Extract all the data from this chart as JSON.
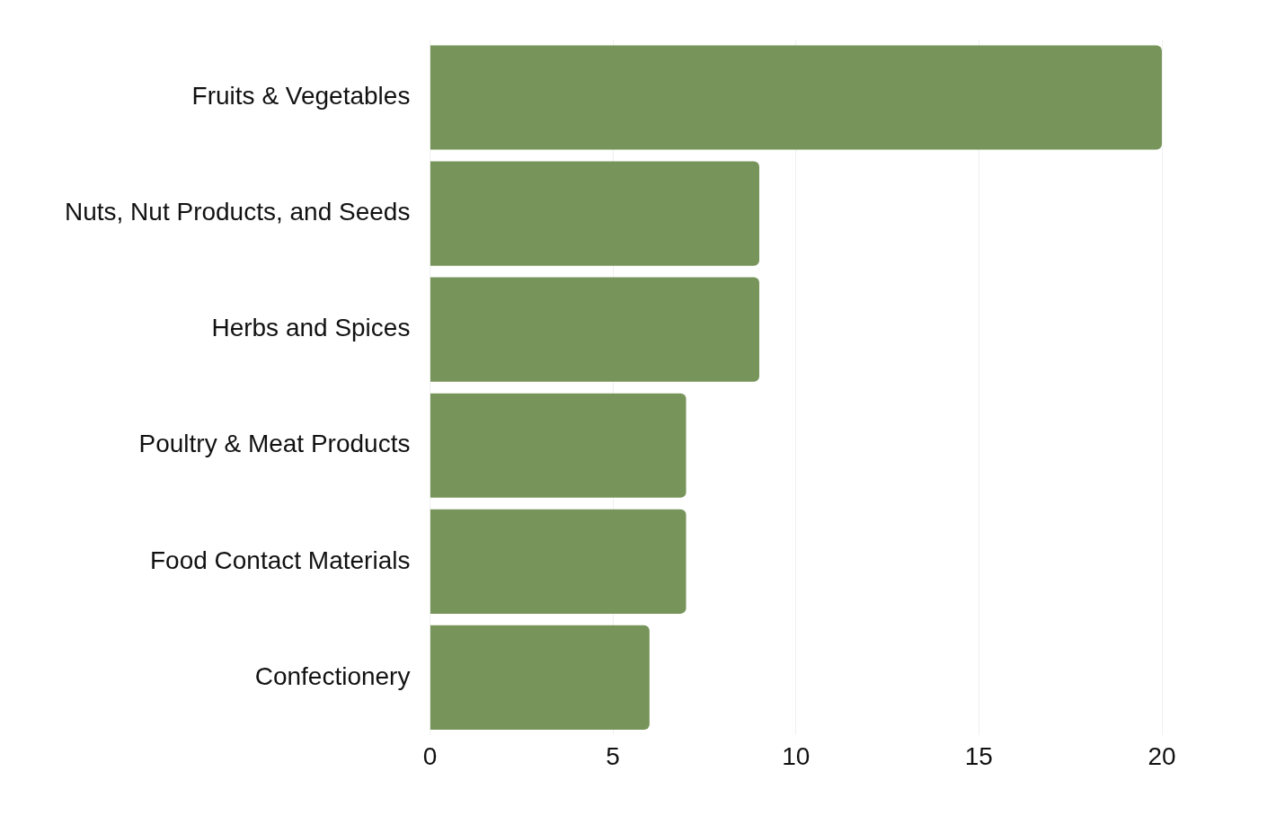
{
  "chart_data": {
    "type": "bar",
    "orientation": "horizontal",
    "categories": [
      "Fruits & Vegetables",
      "Nuts, Nut Products, and Seeds",
      "Herbs and Spices",
      "Poultry & Meat Products",
      "Food Contact Materials",
      "Confectionery"
    ],
    "values": [
      20,
      9,
      9,
      7,
      7,
      6
    ],
    "color": "#77955a",
    "xlim": [
      0,
      20
    ],
    "xticks": [
      0,
      5,
      10,
      15,
      20
    ],
    "grid": "x"
  }
}
